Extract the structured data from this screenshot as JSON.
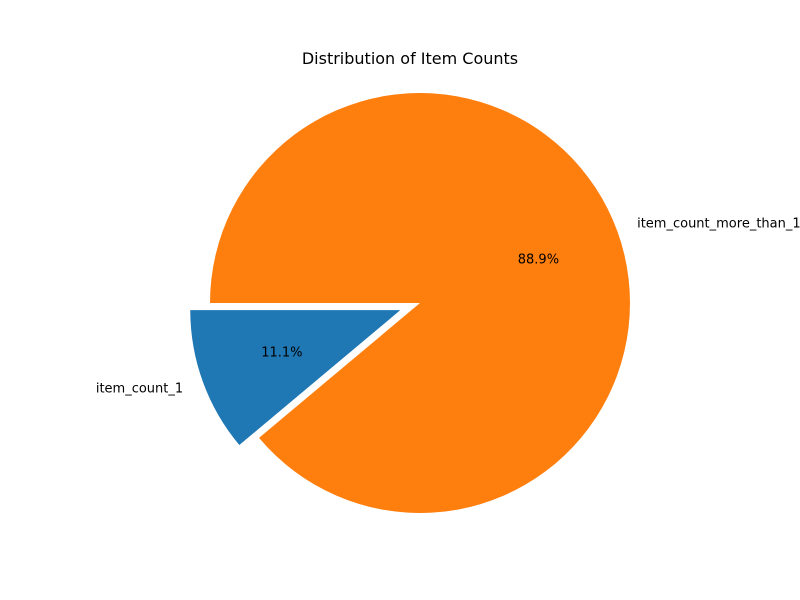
{
  "chart_data": {
    "type": "pie",
    "title": "Distribution of Item Counts",
    "categories": [
      "item_count_1",
      "item_count_more_than_1"
    ],
    "values": [
      11.1,
      88.9
    ],
    "percent_labels": [
      "11.1%",
      "88.9%"
    ],
    "colors": [
      "#1f77b4",
      "#ff7f0e"
    ],
    "exploded": [
      "item_count_1"
    ],
    "start_angle_degrees": 180,
    "direction": "counterclockwise",
    "legend": "none"
  }
}
